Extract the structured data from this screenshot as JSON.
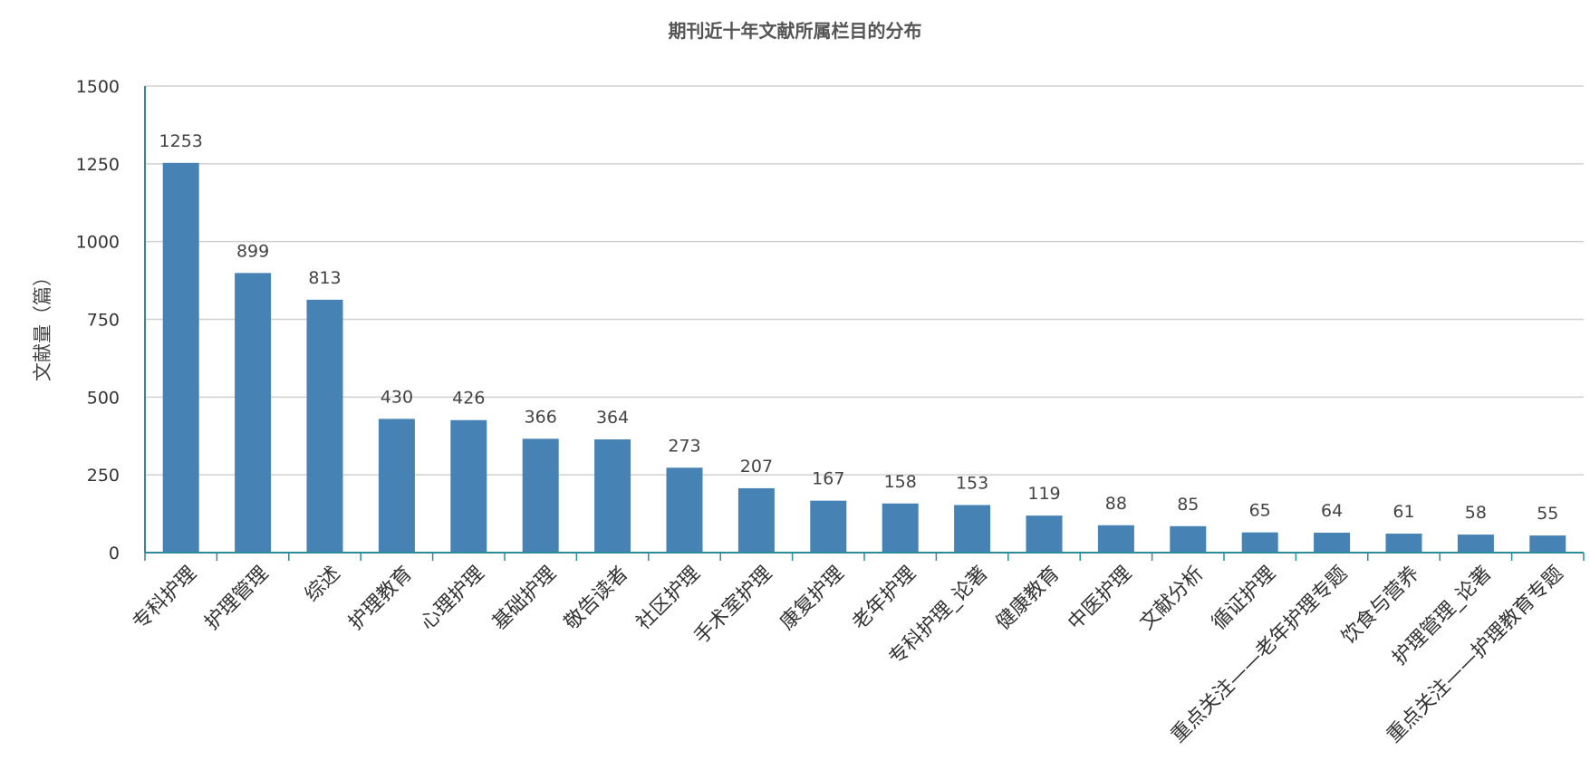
{
  "chart_data": {
    "type": "bar",
    "title": "期刊近十年文献所属栏目的分布",
    "xlabel": "",
    "ylabel": "文献量（篇）",
    "ylim": [
      0,
      1500
    ],
    "yticks": [
      0,
      250,
      500,
      750,
      1000,
      1250,
      1500
    ],
    "grid": true,
    "categories": [
      "专科护理",
      "护理管理",
      "综述",
      "护理教育",
      "心理护理",
      "基础护理",
      "敬告读者",
      "社区护理",
      "手术室护理",
      "康复护理",
      "老年护理",
      "专科护理_论著",
      "健康教育",
      "中医护理",
      "文献分析",
      "循证护理",
      "重点关注——老年护理专题",
      "饮食与营养",
      "护理管理_论著",
      "重点关注——护理教育专题"
    ],
    "values": [
      1253,
      899,
      813,
      430,
      426,
      366,
      364,
      273,
      207,
      167,
      158,
      153,
      119,
      88,
      85,
      65,
      64,
      61,
      58,
      55
    ],
    "bar_color": "#4682b4",
    "axis_color": "#2e8b9a",
    "grid_color": "#d0d0d0"
  }
}
